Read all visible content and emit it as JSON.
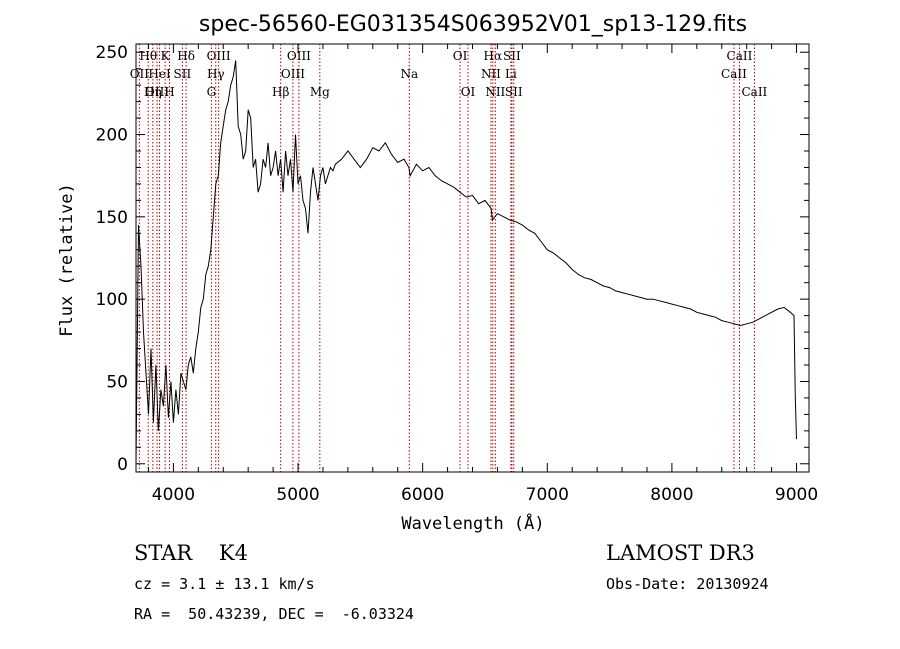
{
  "chart_data": {
    "type": "line",
    "title": "spec-56560-EG031354S063952V01_sp13-129.fits",
    "xlabel": "Wavelength (Å)",
    "ylabel": "Flux (relative)",
    "xlim": [
      3700,
      9100
    ],
    "ylim": [
      -5,
      255
    ],
    "xticks": [
      4000,
      5000,
      6000,
      7000,
      8000,
      9000
    ],
    "yticks": [
      0,
      50,
      100,
      150,
      200,
      250
    ],
    "grid": false,
    "series": [
      {
        "x": [
          3700,
          3720,
          3740,
          3760,
          3780,
          3800,
          3820,
          3840,
          3860,
          3880,
          3900,
          3920,
          3940,
          3960,
          3980,
          4000,
          4020,
          4040,
          4060,
          4080,
          4100,
          4120,
          4140,
          4160,
          4180,
          4200,
          4220,
          4240,
          4260,
          4280,
          4300,
          4320,
          4340,
          4360,
          4380,
          4400,
          4420,
          4440,
          4460,
          4480,
          4500,
          4520,
          4540,
          4560,
          4580,
          4600,
          4620,
          4640,
          4660,
          4680,
          4700,
          4720,
          4740,
          4760,
          4780,
          4800,
          4820,
          4840,
          4860,
          4880,
          4900,
          4920,
          4940,
          4960,
          4980,
          5000,
          5020,
          5040,
          5060,
          5080,
          5100,
          5120,
          5140,
          5160,
          5180,
          5200,
          5220,
          5240,
          5260,
          5280,
          5300,
          5350,
          5400,
          5450,
          5500,
          5550,
          5600,
          5650,
          5700,
          5750,
          5800,
          5850,
          5890,
          5900,
          5950,
          6000,
          6050,
          6100,
          6150,
          6200,
          6250,
          6300,
          6350,
          6400,
          6450,
          6500,
          6550,
          6560,
          6600,
          6650,
          6700,
          6750,
          6800,
          6850,
          6900,
          6950,
          7000,
          7050,
          7100,
          7150,
          7200,
          7250,
          7300,
          7350,
          7400,
          7450,
          7500,
          7550,
          7600,
          7650,
          7700,
          7750,
          7800,
          7850,
          7900,
          7950,
          8000,
          8050,
          8100,
          8150,
          8200,
          8250,
          8300,
          8350,
          8400,
          8450,
          8500,
          8550,
          8600,
          8650,
          8700,
          8750,
          8800,
          8850,
          8900,
          8950,
          8980,
          8990,
          9000
        ],
        "y": [
          0,
          145,
          120,
          80,
          55,
          30,
          70,
          25,
          60,
          20,
          45,
          35,
          60,
          28,
          50,
          25,
          45,
          30,
          55,
          50,
          45,
          60,
          65,
          55,
          70,
          80,
          95,
          100,
          115,
          120,
          130,
          150,
          170,
          175,
          195,
          205,
          215,
          220,
          230,
          235,
          245,
          205,
          200,
          185,
          190,
          215,
          210,
          180,
          185,
          165,
          170,
          185,
          180,
          195,
          175,
          180,
          190,
          175,
          185,
          165,
          190,
          175,
          185,
          165,
          200,
          170,
          175,
          160,
          155,
          140,
          165,
          180,
          170,
          160,
          175,
          180,
          170,
          175,
          180,
          178,
          182,
          185,
          190,
          185,
          180,
          185,
          192,
          190,
          195,
          188,
          183,
          185,
          180,
          175,
          182,
          178,
          180,
          175,
          172,
          170,
          168,
          165,
          162,
          163,
          158,
          160,
          155,
          148,
          152,
          150,
          148,
          147,
          145,
          142,
          140,
          135,
          130,
          128,
          125,
          122,
          118,
          115,
          113,
          112,
          110,
          108,
          107,
          105,
          104,
          103,
          102,
          101,
          100,
          100,
          99,
          98,
          97,
          96,
          95,
          94,
          92,
          91,
          90,
          89,
          87,
          86,
          85,
          84,
          85,
          86,
          88,
          90,
          92,
          94,
          95,
          92,
          90,
          40,
          15
        ]
      }
    ],
    "emission_lines": [
      {
        "label": "Hθ",
        "x": 3798,
        "row": 0
      },
      {
        "label": "OII",
        "x": 3727,
        "row": 1
      },
      {
        "label": "OIII",
        "x": 3869,
        "row": 2
      },
      {
        "label": "K",
        "x": 3934,
        "row": 0
      },
      {
        "label": "HeI",
        "x": 3889,
        "row": 1
      },
      {
        "label": "Hη",
        "x": 3835,
        "row": 2
      },
      {
        "label": "Hδ",
        "x": 4102,
        "row": 0
      },
      {
        "label": "SII",
        "x": 4072,
        "row": 1
      },
      {
        "label": "H",
        "x": 3969,
        "row": 2
      },
      {
        "label": "OIII",
        "x": 4363,
        "row": 0
      },
      {
        "label": "Hγ",
        "x": 4340,
        "row": 1
      },
      {
        "label": "G",
        "x": 4305,
        "row": 2
      },
      {
        "label": "OIII",
        "x": 5007,
        "row": 0
      },
      {
        "label": "OIII",
        "x": 4959,
        "row": 1
      },
      {
        "label": "Hβ",
        "x": 4861,
        "row": 2
      },
      {
        "label": "Mg",
        "x": 5175,
        "row": 2
      },
      {
        "label": "Na",
        "x": 5893,
        "row": 1
      },
      {
        "label": "OI",
        "x": 6300,
        "row": 0
      },
      {
        "label": "OI",
        "x": 6364,
        "row": 2
      },
      {
        "label": "Hα",
        "x": 6563,
        "row": 0
      },
      {
        "label": "NII",
        "x": 6548,
        "row": 1
      },
      {
        "label": "NII",
        "x": 6583,
        "row": 2
      },
      {
        "label": "SII",
        "x": 6716,
        "row": 0
      },
      {
        "label": "Li",
        "x": 6708,
        "row": 1
      },
      {
        "label": "SII",
        "x": 6731,
        "row": 2
      },
      {
        "label": "CaII",
        "x": 8542,
        "row": 0
      },
      {
        "label": "CaII",
        "x": 8498,
        "row": 1
      },
      {
        "label": "CaII",
        "x": 8662,
        "row": 2
      }
    ]
  },
  "info": {
    "classification": "STAR    K4",
    "survey": "LAMOST DR3",
    "velocity": "cz = 3.1 ± 13.1 km/s",
    "obs_date": "Obs-Date: 20130924",
    "coords": "RA =  50.43239, DEC =  -6.03324"
  }
}
